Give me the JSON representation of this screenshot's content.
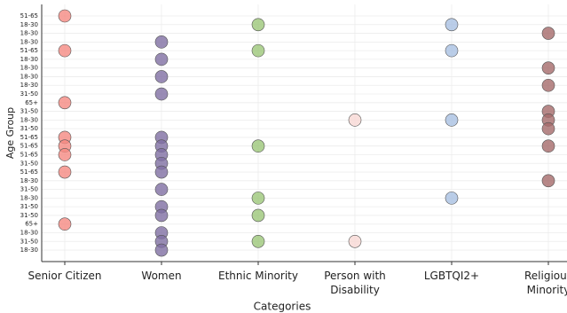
{
  "chart_data": {
    "type": "scatter",
    "x_label": "Categories",
    "y_label": "Age Group",
    "categories": [
      "Senior Citizen",
      "Women",
      "Ethnic Minority",
      "Person with\nDisability",
      "LGBTQI2+",
      "Religious\nMinority"
    ],
    "y_categories": [
      "51-65",
      "18-30",
      "18-30",
      "18-30",
      "51-65",
      "18-30",
      "18-30",
      "18-30",
      "18-30",
      "31-50",
      "65+",
      "31-50",
      "18-30",
      "31-50",
      "51-65",
      "51-65",
      "51-65",
      "31-50",
      "51-65",
      "18-30",
      "31-50",
      "18-30",
      "31-50",
      "31-50",
      "65+",
      "18-30",
      "31-50",
      "18-30"
    ],
    "colors": [
      "#f58a82",
      "#7f6fa3",
      "#9cc779",
      "#f8d8d4",
      "#a9c0e2",
      "#a56a6a"
    ],
    "points": [
      [
        0,
        4,
        10,
        14,
        15,
        16,
        18,
        24
      ],
      [
        3,
        5,
        7,
        9,
        14,
        15,
        16,
        17,
        18,
        20,
        22,
        23,
        25,
        26,
        27
      ],
      [
        1,
        4,
        15,
        21,
        23,
        26
      ],
      [
        12,
        26
      ],
      [
        1,
        4,
        12,
        21
      ],
      [
        2,
        6,
        8,
        11,
        12,
        13,
        15,
        19
      ]
    ],
    "grid": true
  }
}
